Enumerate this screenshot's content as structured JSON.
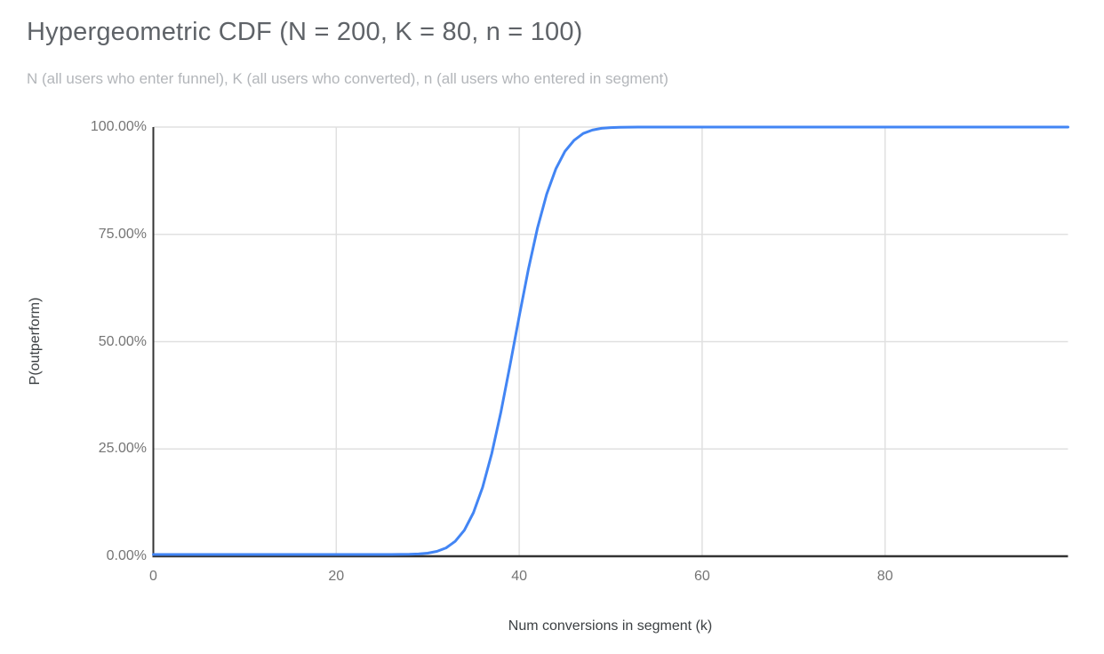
{
  "header": {
    "title": "Hypergeometric CDF (N = 200, K = 80, n = 100)",
    "subtitle": "N (all users who enter funnel), K (all users who converted), n (all users who entered in segment)"
  },
  "chart": {
    "y_axis": {
      "title": "P(outperform)",
      "ticks": [
        {
          "label": "0.00%",
          "value": 0
        },
        {
          "label": "25.00%",
          "value": 0.25
        },
        {
          "label": "50.00%",
          "value": 0.5
        },
        {
          "label": "75.00%",
          "value": 0.75
        },
        {
          "label": "100.00%",
          "value": 1
        }
      ]
    },
    "x_axis": {
      "title": "Num conversions in segment (k)",
      "ticks": [
        {
          "label": "0",
          "value": 0
        },
        {
          "label": "20",
          "value": 20
        },
        {
          "label": "40",
          "value": 40
        },
        {
          "label": "60",
          "value": 60
        },
        {
          "label": "80",
          "value": 80
        }
      ]
    },
    "colors": {
      "line": "#4285f4",
      "gridline": "#e0e0e0",
      "axis": "#333333",
      "tick_label": "#757575",
      "title": "#5f6368",
      "subtitle": "#b3b6ba",
      "axis_title": "#3c4043",
      "background": "#ffffff"
    }
  },
  "chart_data": {
    "type": "line",
    "title": "Hypergeometric CDF (N = 200, K = 80, n = 100)",
    "subtitle": "N (all users who enter funnel), K (all users who converted), n (all users who entered in segment)",
    "xlabel": "Num conversions in segment (k)",
    "ylabel": "P(outperform)",
    "xlim": [
      0,
      100
    ],
    "ylim": [
      0,
      1
    ],
    "grid": true,
    "legend": false,
    "params": {
      "N": 200,
      "K": 80,
      "n": 100
    },
    "x_gridlines": [
      20,
      40,
      60,
      80
    ],
    "y_gridlines": [
      0.25,
      0.5,
      0.75,
      1
    ],
    "series": [
      {
        "name": "P(outperform)",
        "color": "#4285f4",
        "x": [
          0,
          5,
          10,
          15,
          20,
          25,
          26,
          27,
          28,
          29,
          30,
          31,
          32,
          33,
          34,
          35,
          36,
          37,
          38,
          39,
          40,
          41,
          42,
          43,
          44,
          45,
          46,
          47,
          48,
          49,
          50,
          51,
          52,
          53,
          54,
          55,
          60,
          70,
          80,
          90,
          100
        ],
        "y": [
          0,
          0,
          0,
          0,
          0,
          2e-05,
          6e-05,
          0.00016,
          0.0005,
          0.0013,
          0.0031,
          0.0072,
          0.0154,
          0.0307,
          0.0567,
          0.0977,
          0.157,
          0.236,
          0.333,
          0.443,
          0.557,
          0.667,
          0.764,
          0.843,
          0.902,
          0.943,
          0.969,
          0.985,
          0.993,
          0.997,
          0.9987,
          0.9995,
          0.9998,
          0.9999,
          1,
          1,
          1,
          1,
          1,
          1,
          1
        ]
      }
    ]
  }
}
